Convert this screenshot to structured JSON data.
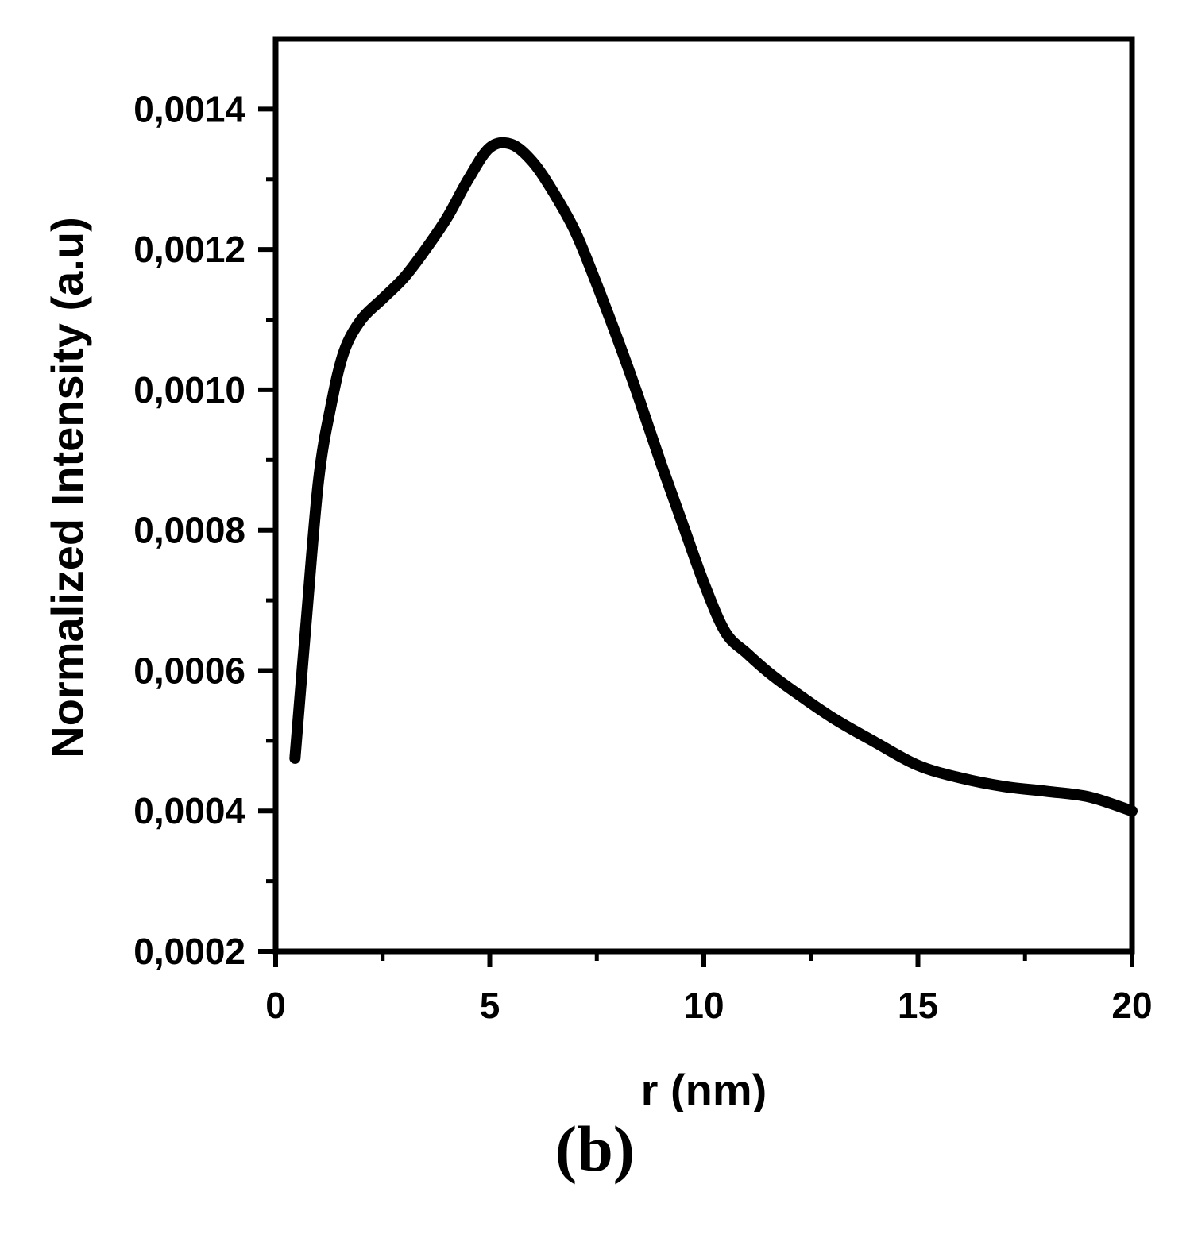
{
  "panel_label": "(b)",
  "chart_data": {
    "type": "line",
    "title": "",
    "xlabel": "r (nm)",
    "ylabel": "Normalized Intensity (a.u)",
    "xlim": [
      0,
      20
    ],
    "ylim": [
      0.0002,
      0.0015
    ],
    "xticks": [
      0,
      5,
      10,
      15,
      20
    ],
    "xtick_labels": [
      "0",
      "5",
      "10",
      "15",
      "20"
    ],
    "yticks": [
      0.0002,
      0.0004,
      0.0006,
      0.0008,
      0.001,
      0.0012,
      0.0014
    ],
    "ytick_labels": [
      "0,0002",
      "0,0004",
      "0,0006",
      "0,0008",
      "0,0010",
      "0,0012",
      "0,0014"
    ],
    "grid": false,
    "line_color": "#000000",
    "series": [
      {
        "x": [
          0.45,
          0.7,
          1.0,
          1.3,
          1.6,
          2.0,
          2.5,
          3.0,
          3.5,
          4.0,
          4.5,
          5.0,
          5.5,
          6.0,
          6.5,
          7.0,
          7.5,
          8.0,
          8.5,
          9.0,
          9.5,
          10.0,
          10.5,
          11.0,
          11.5,
          12.0,
          13.0,
          14.0,
          15.0,
          16.0,
          17.0,
          18.0,
          19.0,
          20.0
        ],
        "y": [
          0.000475,
          0.00066,
          0.00087,
          0.00098,
          0.001055,
          0.0011,
          0.00113,
          0.00116,
          0.0012,
          0.001245,
          0.0013,
          0.001345,
          0.00135,
          0.001325,
          0.00128,
          0.001225,
          0.00115,
          0.00107,
          0.000985,
          0.000895,
          0.00081,
          0.000725,
          0.000655,
          0.000625,
          0.000598,
          0.000575,
          0.000533,
          0.000498,
          0.000465,
          0.000447,
          0.000435,
          0.000428,
          0.00042,
          0.0004
        ]
      }
    ]
  }
}
